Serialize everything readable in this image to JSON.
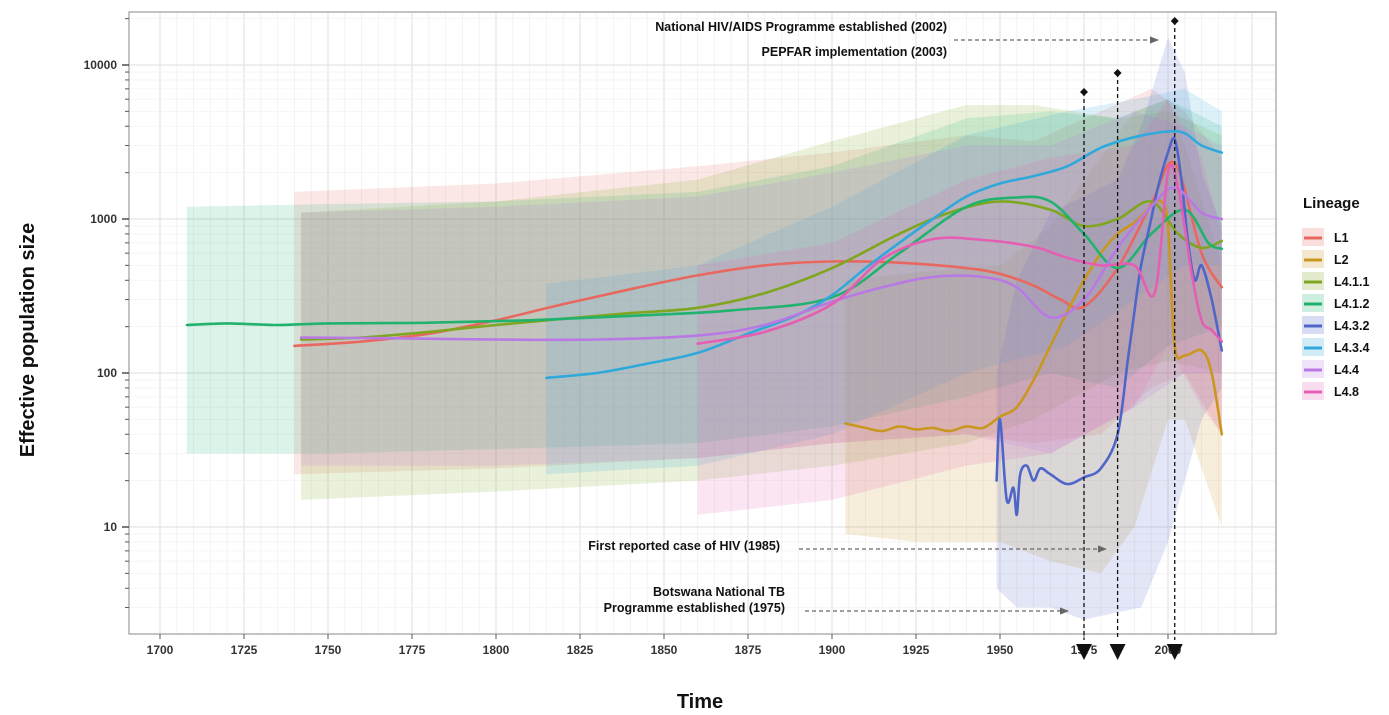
{
  "chart_data": {
    "type": "line",
    "xlabel": "Time",
    "ylabel": "Effective population size",
    "xlim": [
      1690,
      2030
    ],
    "ylim": [
      2,
      20000
    ],
    "y_scale": "log",
    "grid": true,
    "x_ticks": [
      "1700",
      "1725",
      "1750",
      "1775",
      "1800",
      "1825",
      "1850",
      "1875",
      "1900",
      "1925",
      "1950",
      "1975",
      "2000"
    ],
    "y_ticks": [
      "10",
      "100",
      "1000",
      "10000"
    ],
    "legend_title": "Lineage",
    "legend_position": "right",
    "series": [
      {
        "name": "L1",
        "color": "#E8685F",
        "x": [
          1740,
          1760,
          1780,
          1800,
          1820,
          1840,
          1860,
          1880,
          1900,
          1920,
          1940,
          1950,
          1960,
          1968,
          1975,
          1985,
          1995,
          2002,
          2010,
          2016
        ],
        "y": [
          150,
          160,
          180,
          220,
          280,
          350,
          430,
          500,
          530,
          520,
          480,
          440,
          370,
          300,
          270,
          480,
          1250,
          2300,
          600,
          360
        ],
        "band": {
          "x": [
            1740,
            1800,
            1860,
            1900,
            1940,
            1960,
            1980,
            1995,
            2005,
            2016
          ],
          "lo": [
            22,
            24,
            28,
            35,
            40,
            35,
            40,
            80,
            100,
            40
          ],
          "hi": [
            1500,
            1700,
            2200,
            2700,
            3500,
            3200,
            5000,
            7000,
            5000,
            2500
          ]
        }
      },
      {
        "name": "L2",
        "color": "#C9971F",
        "x": [
          1904,
          1910,
          1915,
          1920,
          1925,
          1930,
          1935,
          1940,
          1945,
          1950,
          1955,
          1960,
          1965,
          1970,
          1975,
          1980,
          1985,
          1990,
          1995,
          1998,
          2000,
          2002,
          2005,
          2010,
          2013,
          2016
        ],
        "y": [
          47,
          44,
          42,
          45,
          43,
          44,
          42,
          45,
          44,
          52,
          60,
          90,
          150,
          250,
          400,
          600,
          800,
          950,
          1200,
          1300,
          900,
          150,
          130,
          140,
          100,
          40
        ],
        "band": {
          "x": [
            1904,
            1925,
            1950,
            1965,
            1980,
            1990,
            2000,
            2005,
            2016
          ],
          "lo": [
            9,
            8,
            8,
            6,
            5,
            10,
            50,
            50,
            10
          ],
          "hi": [
            400,
            450,
            500,
            900,
            2500,
            5000,
            6000,
            3000,
            500
          ]
        }
      },
      {
        "name": "L4.1.1",
        "color": "#7FA521",
        "x": [
          1742,
          1760,
          1780,
          1800,
          1820,
          1840,
          1860,
          1880,
          1900,
          1920,
          1935,
          1950,
          1965,
          1975,
          1985,
          1995,
          2003,
          2010,
          2016
        ],
        "y": [
          165,
          170,
          185,
          205,
          225,
          245,
          265,
          330,
          480,
          800,
          1100,
          1300,
          1150,
          900,
          1000,
          1300,
          800,
          650,
          720
        ],
        "band": {
          "x": [
            1742,
            1800,
            1860,
            1900,
            1940,
            1960,
            1985,
            2000,
            2016
          ],
          "lo": [
            15,
            17,
            20,
            25,
            35,
            50,
            100,
            120,
            100
          ],
          "hi": [
            1100,
            1300,
            1800,
            3200,
            5500,
            5500,
            4500,
            5000,
            3500
          ]
        }
      },
      {
        "name": "L4.1.2",
        "color": "#21B26E",
        "x": [
          1708,
          1720,
          1735,
          1750,
          1780,
          1810,
          1840,
          1870,
          1900,
          1920,
          1940,
          1955,
          1965,
          1975,
          1985,
          1995,
          2005,
          2012,
          2016
        ],
        "y": [
          205,
          210,
          205,
          210,
          212,
          220,
          235,
          255,
          310,
          600,
          1200,
          1380,
          1300,
          800,
          480,
          800,
          1150,
          700,
          640
        ],
        "band": {
          "x": [
            1708,
            1750,
            1800,
            1860,
            1900,
            1940,
            1965,
            1985,
            2000,
            2016
          ],
          "lo": [
            30,
            30,
            32,
            35,
            45,
            70,
            100,
            80,
            150,
            200
          ],
          "hi": [
            1200,
            1250,
            1300,
            1500,
            2200,
            4500,
            5000,
            4500,
            6000,
            4000
          ]
        }
      },
      {
        "name": "L4.3.2",
        "color": "#4F66C9",
        "x": [
          1949,
          1950,
          1952,
          1954,
          1955,
          1956,
          1958,
          1960,
          1962,
          1965,
          1970,
          1975,
          1980,
          1985,
          1988,
          1990,
          1992,
          1995,
          1997,
          2000,
          2002,
          2004,
          2006,
          2008,
          2010,
          2013,
          2016
        ],
        "y": [
          20,
          50,
          15,
          18,
          12,
          22,
          25,
          20,
          24,
          22,
          19,
          21,
          24,
          40,
          120,
          250,
          500,
          1000,
          1600,
          2700,
          3300,
          1800,
          700,
          400,
          500,
          300,
          140
        ],
        "band": {
          "x": [
            1949,
            1955,
            1965,
            1975,
            1985,
            1992,
            2000,
            2005,
            2010,
            2016
          ],
          "lo": [
            4,
            3,
            3,
            2.5,
            2.8,
            3,
            8,
            20,
            50,
            80
          ],
          "hi": [
            100,
            400,
            1100,
            1400,
            1800,
            4000,
            15000,
            9000,
            2000,
            900
          ]
        }
      },
      {
        "name": "L4.3.4",
        "color": "#2FA8DC",
        "x": [
          1815,
          1830,
          1845,
          1860,
          1875,
          1890,
          1900,
          1910,
          1920,
          1930,
          1940,
          1950,
          1960,
          1970,
          1980,
          1990,
          2000,
          2005,
          2010,
          2016
        ],
        "y": [
          93,
          100,
          115,
          135,
          180,
          240,
          320,
          480,
          700,
          1000,
          1400,
          1700,
          1900,
          2200,
          2900,
          3400,
          3700,
          3600,
          3000,
          2700
        ],
        "band": {
          "x": [
            1815,
            1860,
            1900,
            1940,
            1970,
            1990,
            2005,
            2016
          ],
          "lo": [
            22,
            25,
            40,
            100,
            150,
            300,
            500,
            500
          ],
          "hi": [
            380,
            500,
            1200,
            3500,
            5000,
            6000,
            7000,
            5000
          ]
        }
      },
      {
        "name": "L4.4",
        "color": "#B979E4",
        "x": [
          1742,
          1770,
          1800,
          1830,
          1860,
          1880,
          1900,
          1915,
          1930,
          1945,
          1955,
          1965,
          1975,
          1985,
          1995,
          2002,
          2010,
          2016
        ],
        "y": [
          170,
          168,
          165,
          165,
          175,
          205,
          290,
          360,
          420,
          420,
          360,
          230,
          300,
          650,
          1200,
          1600,
          1100,
          1000
        ],
        "band": {
          "x": [
            1742,
            1800,
            1860,
            1900,
            1940,
            1965,
            1990,
            2005,
            2016
          ],
          "lo": [
            25,
            25,
            28,
            35,
            40,
            30,
            60,
            100,
            100
          ],
          "hi": [
            1100,
            1200,
            1400,
            2000,
            3000,
            3000,
            5000,
            4000,
            3000
          ]
        }
      },
      {
        "name": "L4.8",
        "color": "#E45FB3",
        "x": [
          1860,
          1880,
          1900,
          1915,
          1930,
          1945,
          1960,
          1970,
          1980,
          1990,
          1996,
          2000,
          2003,
          2007,
          2010,
          2013,
          2016
        ],
        "y": [
          155,
          185,
          280,
          550,
          740,
          730,
          660,
          560,
          500,
          500,
          330,
          2000,
          1600,
          450,
          220,
          190,
          160
        ],
        "band": {
          "x": [
            1860,
            1900,
            1940,
            1965,
            1990,
            2000,
            2010,
            2016
          ],
          "lo": [
            12,
            15,
            25,
            30,
            60,
            150,
            60,
            40
          ],
          "hi": [
            500,
            700,
            1800,
            2500,
            3000,
            6000,
            2500,
            800
          ]
        }
      }
    ],
    "annotations": [
      {
        "lines": [
          "National HIV/AIDS Programme established (2002)"
        ],
        "year": 2002
      },
      {
        "lines": [
          "PEPFAR implementation (2003)"
        ],
        "year": 2003
      },
      {
        "lines": [
          "First reported case of HIV (1985)"
        ],
        "year": 1985
      },
      {
        "lines": [
          "Botswana National TB",
          "Programme established (1975)"
        ],
        "year": 1975
      }
    ]
  }
}
